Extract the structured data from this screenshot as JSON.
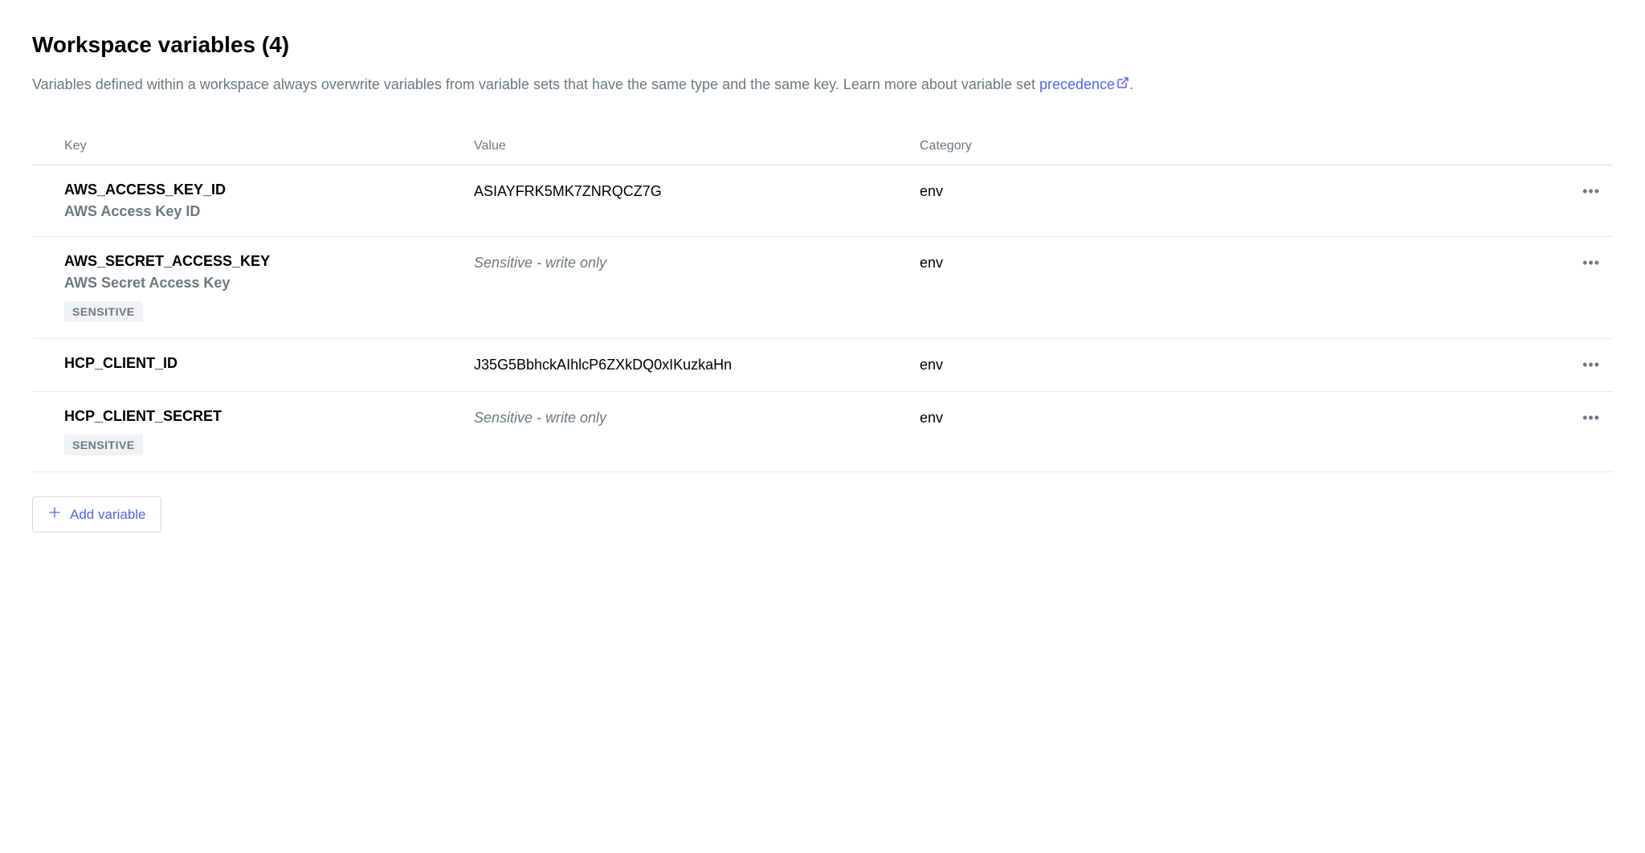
{
  "header": {
    "title": "Workspace variables (4)",
    "description_prefix": "Variables defined within a workspace always overwrite variables from variable sets that have the same type and the same key. Learn more about variable set ",
    "link_text": "precedence",
    "description_suffix": "."
  },
  "table": {
    "columns": {
      "key": "Key",
      "value": "Value",
      "category": "Category"
    },
    "rows": [
      {
        "key": "AWS_ACCESS_KEY_ID",
        "description": "AWS Access Key ID",
        "value": "ASIAYFRK5MK7ZNRQCZ7G",
        "sensitive": false,
        "category": "env"
      },
      {
        "key": "AWS_SECRET_ACCESS_KEY",
        "description": "AWS Secret Access Key",
        "value": "Sensitive - write only",
        "sensitive": true,
        "category": "env"
      },
      {
        "key": "HCP_CLIENT_ID",
        "description": "",
        "value": "J35G5BbhckAIhlcP6ZXkDQ0xIKuzkaHn",
        "sensitive": false,
        "category": "env"
      },
      {
        "key": "HCP_CLIENT_SECRET",
        "description": "",
        "value": "Sensitive - write only",
        "sensitive": true,
        "category": "env"
      }
    ]
  },
  "labels": {
    "sensitive_badge": "SENSITIVE",
    "add_variable": "Add variable"
  }
}
